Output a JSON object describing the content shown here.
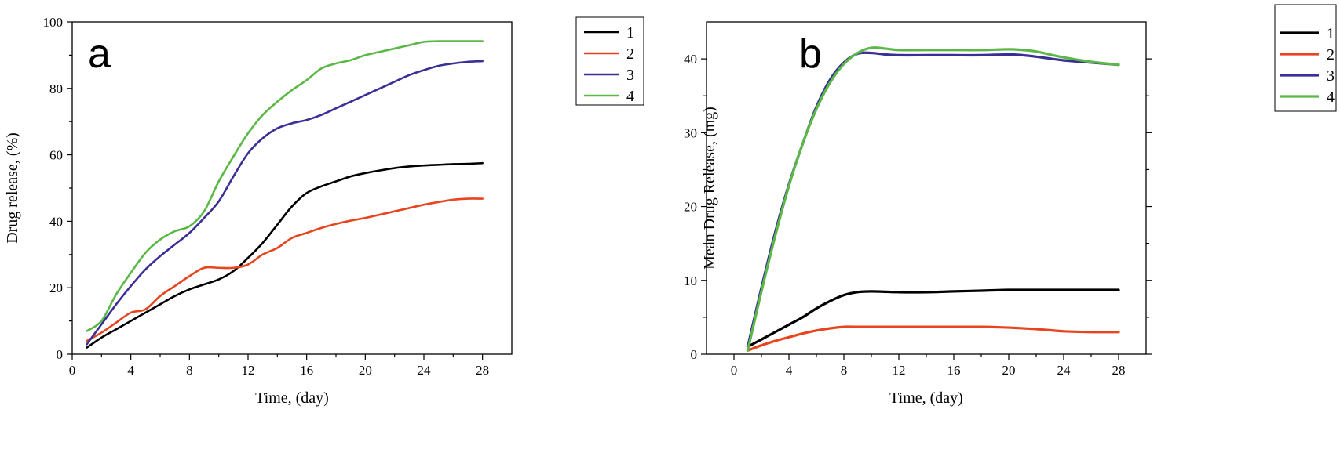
{
  "chart_data": [
    {
      "type": "line",
      "title": "",
      "panel_label": "a",
      "xlabel": "Time, (day)",
      "ylabel": "Drug release, (%)",
      "xlim": [
        0,
        30
      ],
      "ylim": [
        0,
        100
      ],
      "xticks": [
        0,
        4,
        8,
        12,
        16,
        20,
        24,
        28
      ],
      "yticks": [
        0,
        20,
        40,
        60,
        80,
        100
      ],
      "legend_position": "outside-top-right",
      "series": [
        {
          "name": "1",
          "color": "#000000",
          "x": [
            1,
            2,
            3,
            4,
            5,
            6,
            7,
            8,
            9,
            10,
            11,
            12,
            13,
            14,
            15,
            16,
            17,
            18,
            19,
            20,
            21,
            22,
            23,
            24,
            25,
            26,
            27,
            28
          ],
          "y": [
            2,
            5,
            7.5,
            10,
            12.5,
            15,
            17.5,
            19.5,
            21,
            22.5,
            25,
            29,
            33.5,
            39,
            44.5,
            48.5,
            50.5,
            52,
            53.5,
            54.5,
            55.3,
            56,
            56.5,
            56.8,
            57,
            57.2,
            57.3,
            57.5
          ]
        },
        {
          "name": "2",
          "color": "#e8441e",
          "x": [
            1,
            2,
            3,
            4,
            5,
            6,
            7,
            8,
            9,
            10,
            11,
            12,
            13,
            14,
            15,
            16,
            17,
            18,
            19,
            20,
            21,
            22,
            23,
            24,
            25,
            26,
            27,
            28
          ],
          "y": [
            4,
            6.5,
            9.5,
            12.5,
            13.5,
            17.5,
            20.5,
            23.5,
            26,
            26,
            26,
            27,
            30,
            32,
            35,
            36.5,
            38,
            39.2,
            40.2,
            41,
            42,
            43,
            44,
            45,
            45.8,
            46.5,
            46.8,
            46.8
          ]
        },
        {
          "name": "3",
          "color": "#3a2f96",
          "x": [
            1,
            2,
            3,
            4,
            5,
            6,
            7,
            8,
            9,
            10,
            11,
            12,
            13,
            14,
            15,
            16,
            17,
            18,
            19,
            20,
            21,
            22,
            23,
            24,
            25,
            26,
            27,
            28
          ],
          "y": [
            3,
            9,
            15,
            20.5,
            25.5,
            29.5,
            33,
            36.5,
            41,
            46,
            53.5,
            60.5,
            65,
            68,
            69.5,
            70.5,
            72,
            74,
            76,
            78,
            80,
            82,
            84,
            85.5,
            86.8,
            87.5,
            88,
            88.2
          ]
        },
        {
          "name": "4",
          "color": "#5bb846",
          "x": [
            1,
            2,
            3,
            4,
            5,
            6,
            7,
            8,
            9,
            10,
            11,
            12,
            13,
            14,
            15,
            16,
            17,
            18,
            19,
            20,
            21,
            22,
            23,
            24,
            25,
            26,
            27,
            28
          ],
          "y": [
            7,
            10,
            18,
            24.5,
            30.5,
            34.5,
            37,
            38.5,
            43,
            52,
            59.5,
            66.5,
            72,
            76,
            79.5,
            82.5,
            86,
            87.5,
            88.5,
            90,
            91,
            92,
            93,
            94,
            94.2,
            94.2,
            94.2,
            94.2
          ]
        }
      ]
    },
    {
      "type": "line",
      "title": "",
      "panel_label": "b",
      "xlabel": "Time, (day)",
      "ylabel": "Mean Drug Release, (mg)",
      "xlim": [
        -2,
        30
      ],
      "ylim": [
        0,
        45
      ],
      "xticks": [
        0,
        4,
        8,
        12,
        16,
        20,
        24,
        28
      ],
      "yticks": [
        0,
        10,
        20,
        30,
        40
      ],
      "legend_position": "outside-top-right",
      "series": [
        {
          "name": "1",
          "color": "#000000",
          "x": [
            1,
            2,
            3,
            4,
            5,
            6,
            7,
            8,
            9,
            10,
            12,
            14,
            16,
            18,
            20,
            22,
            24,
            26,
            28
          ],
          "y": [
            1,
            2,
            3,
            4,
            5,
            6.2,
            7.2,
            8.0,
            8.4,
            8.5,
            8.4,
            8.4,
            8.5,
            8.6,
            8.7,
            8.7,
            8.7,
            8.7,
            8.7
          ]
        },
        {
          "name": "2",
          "color": "#e8441e",
          "x": [
            1,
            2,
            3,
            4,
            5,
            6,
            7,
            8,
            9,
            10,
            12,
            14,
            16,
            18,
            20,
            22,
            24,
            26,
            28
          ],
          "y": [
            0.5,
            1.2,
            1.8,
            2.3,
            2.8,
            3.2,
            3.5,
            3.7,
            3.7,
            3.7,
            3.7,
            3.7,
            3.7,
            3.7,
            3.6,
            3.4,
            3.1,
            3.0,
            3.0
          ]
        },
        {
          "name": "3",
          "color": "#3a2f96",
          "x": [
            1,
            2,
            3,
            4,
            5,
            6,
            7,
            8,
            9,
            10,
            11,
            12,
            14,
            16,
            18,
            20,
            21,
            22,
            24,
            26,
            28
          ],
          "y": [
            1,
            9,
            16.5,
            23,
            28.5,
            33.5,
            37.2,
            39.5,
            40.7,
            40.8,
            40.6,
            40.5,
            40.5,
            40.5,
            40.5,
            40.6,
            40.5,
            40.3,
            39.8,
            39.5,
            39.2
          ]
        },
        {
          "name": "4",
          "color": "#5bb846",
          "x": [
            1,
            2,
            3,
            4,
            5,
            6,
            7,
            8,
            9,
            10,
            11,
            12,
            14,
            16,
            18,
            20,
            21,
            22,
            24,
            26,
            28
          ],
          "y": [
            0.5,
            8.5,
            16,
            22.8,
            28.5,
            33.2,
            36.8,
            39.3,
            40.8,
            41.5,
            41.4,
            41.2,
            41.2,
            41.2,
            41.2,
            41.3,
            41.2,
            41,
            40.2,
            39.6,
            39.2
          ]
        }
      ]
    }
  ]
}
